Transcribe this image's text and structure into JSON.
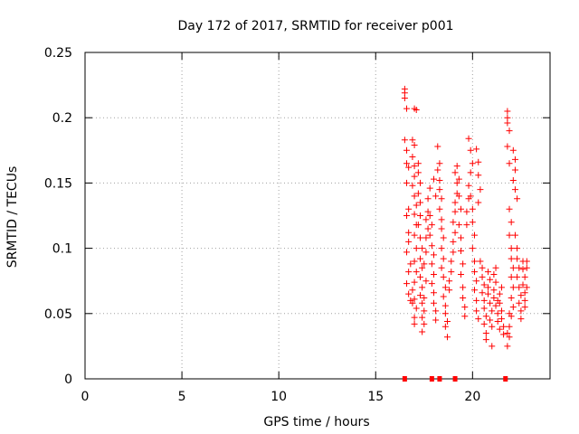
{
  "chart_data": {
    "type": "scatter",
    "title": "Day 172 of 2017, SRMTID for receiver p001",
    "xlabel": "GPS time / hours",
    "ylabel": "SRMTID / TECUs",
    "xlim": [
      0,
      24
    ],
    "ylim": [
      0,
      0.25
    ],
    "xticks": [
      0,
      5,
      10,
      15,
      20
    ],
    "xtick_labels": [
      "0",
      "5",
      "10",
      "15",
      "20"
    ],
    "yticks": [
      0,
      0.05,
      0.1,
      0.15,
      0.2,
      0.25
    ],
    "ytick_labels": [
      "0",
      "0.05",
      "0.1",
      "0.15",
      "0.2",
      "0.25"
    ],
    "grid": true,
    "marker": "+",
    "color": "#ff0000",
    "series": [
      {
        "name": "SRMTID",
        "points": [
          [
            16.5,
            0.222
          ],
          [
            16.5,
            0.219
          ],
          [
            16.5,
            0.215
          ],
          [
            16.6,
            0.207
          ],
          [
            16.5,
            0.183
          ],
          [
            16.6,
            0.175
          ],
          [
            16.6,
            0.165
          ],
          [
            16.7,
            0.162
          ],
          [
            16.6,
            0.15
          ],
          [
            16.7,
            0.13
          ],
          [
            16.6,
            0.125
          ],
          [
            16.7,
            0.112
          ],
          [
            16.7,
            0.105
          ],
          [
            16.6,
            0.097
          ],
          [
            16.8,
            0.088
          ],
          [
            16.7,
            0.082
          ],
          [
            16.6,
            0.073
          ],
          [
            16.7,
            0.065
          ],
          [
            16.8,
            0.06
          ],
          [
            16.9,
            0.058
          ],
          [
            16.9,
            0.183
          ],
          [
            17.0,
            0.179
          ],
          [
            16.9,
            0.17
          ],
          [
            17.0,
            0.163
          ],
          [
            17.0,
            0.155
          ],
          [
            16.9,
            0.148
          ],
          [
            17.0,
            0.14
          ],
          [
            17.1,
            0.133
          ],
          [
            17.0,
            0.126
          ],
          [
            17.1,
            0.118
          ],
          [
            17.0,
            0.11
          ],
          [
            17.1,
            0.1
          ],
          [
            17.0,
            0.09
          ],
          [
            17.1,
            0.082
          ],
          [
            17.0,
            0.074
          ],
          [
            16.9,
            0.068
          ],
          [
            17.0,
            0.061
          ],
          [
            17.1,
            0.054
          ],
          [
            17.0,
            0.047
          ],
          [
            17.0,
            0.042
          ],
          [
            17.0,
            0.207
          ],
          [
            17.1,
            0.206
          ],
          [
            17.2,
            0.165
          ],
          [
            17.2,
            0.158
          ],
          [
            17.3,
            0.15
          ],
          [
            17.2,
            0.142
          ],
          [
            17.3,
            0.135
          ],
          [
            17.3,
            0.125
          ],
          [
            17.2,
            0.118
          ],
          [
            17.3,
            0.108
          ],
          [
            17.4,
            0.1
          ],
          [
            17.3,
            0.092
          ],
          [
            17.4,
            0.085
          ],
          [
            17.3,
            0.078
          ],
          [
            17.4,
            0.07
          ],
          [
            17.3,
            0.064
          ],
          [
            17.4,
            0.058
          ],
          [
            17.5,
            0.052
          ],
          [
            17.4,
            0.047
          ],
          [
            17.5,
            0.042
          ],
          [
            17.4,
            0.036
          ],
          [
            17.5,
            0.062
          ],
          [
            17.6,
            0.075
          ],
          [
            17.5,
            0.088
          ],
          [
            17.6,
            0.097
          ],
          [
            17.6,
            0.108
          ],
          [
            17.7,
            0.115
          ],
          [
            17.6,
            0.122
          ],
          [
            17.7,
            0.128
          ],
          [
            17.7,
            0.138
          ],
          [
            17.8,
            0.146
          ],
          [
            17.8,
            0.125
          ],
          [
            17.9,
            0.118
          ],
          [
            17.8,
            0.11
          ],
          [
            17.9,
            0.102
          ],
          [
            18.0,
            0.095
          ],
          [
            17.9,
            0.088
          ],
          [
            18.0,
            0.08
          ],
          [
            17.9,
            0.073
          ],
          [
            18.0,
            0.066
          ],
          [
            18.0,
            0.058
          ],
          [
            18.1,
            0.052
          ],
          [
            18.1,
            0.045
          ],
          [
            18.0,
            0.153
          ],
          [
            18.1,
            0.14
          ],
          [
            18.2,
            0.178
          ],
          [
            18.3,
            0.165
          ],
          [
            18.2,
            0.16
          ],
          [
            18.3,
            0.152
          ],
          [
            18.3,
            0.145
          ],
          [
            18.4,
            0.138
          ],
          [
            18.3,
            0.13
          ],
          [
            18.4,
            0.122
          ],
          [
            18.4,
            0.115
          ],
          [
            18.5,
            0.108
          ],
          [
            18.4,
            0.1
          ],
          [
            18.5,
            0.092
          ],
          [
            18.4,
            0.085
          ],
          [
            18.5,
            0.078
          ],
          [
            18.6,
            0.07
          ],
          [
            18.5,
            0.063
          ],
          [
            18.6,
            0.056
          ],
          [
            18.6,
            0.05
          ],
          [
            18.7,
            0.044
          ],
          [
            18.6,
            0.04
          ],
          [
            18.7,
            0.032
          ],
          [
            18.8,
            0.068
          ],
          [
            18.8,
            0.075
          ],
          [
            18.9,
            0.082
          ],
          [
            18.9,
            0.09
          ],
          [
            19.0,
            0.097
          ],
          [
            19.0,
            0.105
          ],
          [
            19.1,
            0.112
          ],
          [
            19.0,
            0.12
          ],
          [
            19.1,
            0.128
          ],
          [
            19.1,
            0.135
          ],
          [
            19.2,
            0.142
          ],
          [
            19.2,
            0.15
          ],
          [
            19.1,
            0.158
          ],
          [
            19.2,
            0.163
          ],
          [
            19.3,
            0.153
          ],
          [
            19.3,
            0.14
          ],
          [
            19.4,
            0.13
          ],
          [
            19.3,
            0.118
          ],
          [
            19.4,
            0.108
          ],
          [
            19.4,
            0.098
          ],
          [
            19.5,
            0.088
          ],
          [
            19.4,
            0.08
          ],
          [
            19.5,
            0.07
          ],
          [
            19.5,
            0.062
          ],
          [
            19.6,
            0.055
          ],
          [
            19.6,
            0.048
          ],
          [
            19.7,
            0.118
          ],
          [
            19.7,
            0.128
          ],
          [
            19.8,
            0.138
          ],
          [
            19.8,
            0.148
          ],
          [
            19.9,
            0.158
          ],
          [
            19.8,
            0.184
          ],
          [
            19.9,
            0.175
          ],
          [
            20.0,
            0.165
          ],
          [
            19.9,
            0.14
          ],
          [
            20.0,
            0.13
          ],
          [
            20.0,
            0.12
          ],
          [
            20.1,
            0.11
          ],
          [
            20.0,
            0.1
          ],
          [
            20.1,
            0.09
          ],
          [
            20.1,
            0.082
          ],
          [
            20.2,
            0.075
          ],
          [
            20.1,
            0.068
          ],
          [
            20.2,
            0.06
          ],
          [
            20.2,
            0.052
          ],
          [
            20.3,
            0.046
          ],
          [
            20.2,
            0.176
          ],
          [
            20.3,
            0.166
          ],
          [
            20.3,
            0.156
          ],
          [
            20.4,
            0.145
          ],
          [
            20.3,
            0.135
          ],
          [
            20.4,
            0.09
          ],
          [
            20.5,
            0.085
          ],
          [
            20.5,
            0.078
          ],
          [
            20.6,
            0.072
          ],
          [
            20.5,
            0.066
          ],
          [
            20.6,
            0.06
          ],
          [
            20.6,
            0.054
          ],
          [
            20.7,
            0.048
          ],
          [
            20.6,
            0.042
          ],
          [
            20.7,
            0.035
          ],
          [
            20.7,
            0.03
          ],
          [
            20.8,
            0.065
          ],
          [
            20.8,
            0.07
          ],
          [
            20.9,
            0.076
          ],
          [
            20.8,
            0.082
          ],
          [
            20.9,
            0.058
          ],
          [
            21.0,
            0.052
          ],
          [
            20.9,
            0.045
          ],
          [
            21.0,
            0.04
          ],
          [
            21.0,
            0.025
          ],
          [
            21.1,
            0.062
          ],
          [
            21.1,
            0.068
          ],
          [
            21.2,
            0.074
          ],
          [
            21.1,
            0.08
          ],
          [
            21.2,
            0.085
          ],
          [
            21.2,
            0.056
          ],
          [
            21.3,
            0.05
          ],
          [
            21.3,
            0.044
          ],
          [
            21.4,
            0.038
          ],
          [
            21.3,
            0.06
          ],
          [
            21.4,
            0.065
          ],
          [
            21.5,
            0.07
          ],
          [
            21.4,
            0.058
          ],
          [
            21.5,
            0.052
          ],
          [
            21.5,
            0.046
          ],
          [
            21.6,
            0.04
          ],
          [
            21.6,
            0.034
          ],
          [
            21.8,
            0.205
          ],
          [
            21.8,
            0.2
          ],
          [
            21.8,
            0.196
          ],
          [
            21.9,
            0.19
          ],
          [
            21.8,
            0.178
          ],
          [
            21.9,
            0.165
          ],
          [
            21.9,
            0.13
          ],
          [
            22.0,
            0.12
          ],
          [
            21.9,
            0.11
          ],
          [
            22.0,
            0.1
          ],
          [
            22.0,
            0.092
          ],
          [
            22.1,
            0.085
          ],
          [
            22.0,
            0.078
          ],
          [
            22.1,
            0.07
          ],
          [
            22.0,
            0.062
          ],
          [
            22.1,
            0.055
          ],
          [
            22.0,
            0.048
          ],
          [
            21.9,
            0.04
          ],
          [
            21.9,
            0.032
          ],
          [
            21.8,
            0.025
          ],
          [
            21.8,
            0.035
          ],
          [
            21.9,
            0.05
          ],
          [
            22.1,
            0.175
          ],
          [
            22.2,
            0.168
          ],
          [
            22.2,
            0.16
          ],
          [
            22.1,
            0.152
          ],
          [
            22.2,
            0.145
          ],
          [
            22.3,
            0.138
          ],
          [
            22.2,
            0.11
          ],
          [
            22.3,
            0.1
          ],
          [
            22.3,
            0.092
          ],
          [
            22.4,
            0.085
          ],
          [
            22.3,
            0.078
          ],
          [
            22.4,
            0.07
          ],
          [
            22.5,
            0.064
          ],
          [
            22.4,
            0.058
          ],
          [
            22.5,
            0.052
          ],
          [
            22.5,
            0.046
          ],
          [
            22.6,
            0.09
          ],
          [
            22.6,
            0.084
          ],
          [
            22.7,
            0.078
          ],
          [
            22.6,
            0.072
          ],
          [
            22.7,
            0.066
          ],
          [
            22.7,
            0.06
          ],
          [
            22.8,
            0.09
          ],
          [
            22.8,
            0.085
          ],
          [
            22.8,
            0.07
          ],
          [
            22.7,
            0.055
          ]
        ]
      }
    ],
    "zero_points_x": [
      16.5,
      17.9,
      18.3,
      19.1,
      21.7
    ]
  }
}
